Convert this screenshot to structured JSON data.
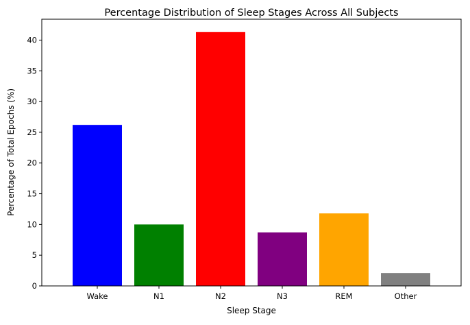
{
  "chart_data": {
    "type": "bar",
    "title": "Percentage Distribution of Sleep Stages Across All Subjects",
    "xlabel": "Sleep Stage",
    "ylabel": "Percentage of Total Epochs (%)",
    "categories": [
      "Wake",
      "N1",
      "N2",
      "N3",
      "REM",
      "Other"
    ],
    "values": [
      26.2,
      10.0,
      41.3,
      8.7,
      11.8,
      2.1
    ],
    "colors": [
      "#0000ff",
      "#008000",
      "#ff0000",
      "#800080",
      "#ffa500",
      "#808080"
    ],
    "ylim": [
      0,
      43.4
    ],
    "yticks": [
      0,
      5,
      10,
      15,
      20,
      25,
      30,
      35,
      40
    ],
    "grid": false,
    "legend": "none"
  }
}
